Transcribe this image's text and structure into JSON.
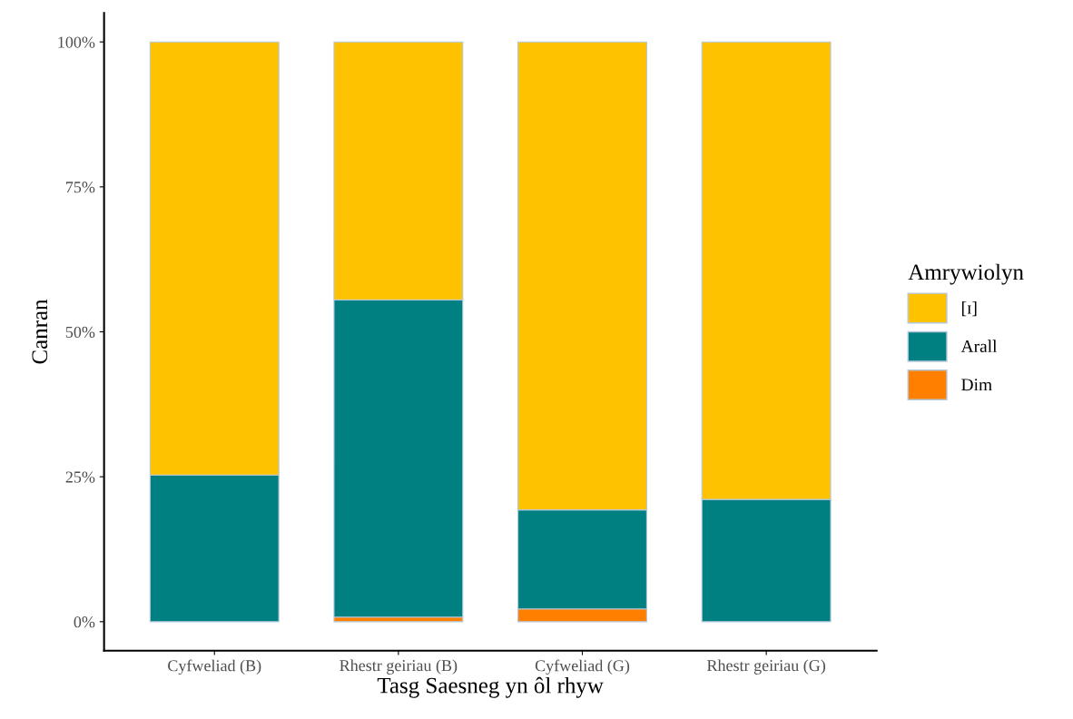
{
  "chart_data": {
    "type": "bar",
    "stacked": true,
    "xlabel": "Tasg Saesneg yn ôl rhyw",
    "ylabel": "Canran",
    "legend_title": "Amrywiolyn",
    "legend": "right",
    "categories": [
      "Cyfweliad (B)",
      "Rhestr geiriau (B)",
      "Cyfweliad (G)",
      "Rhestr geiriau (G)"
    ],
    "series": [
      {
        "name": "Dim",
        "color": "#ff7f00",
        "values": [
          0,
          0.8,
          2.2,
          0
        ]
      },
      {
        "name": "Arall",
        "color": "#008080",
        "values": [
          25.3,
          54.7,
          17.1,
          21.1
        ]
      },
      {
        "name": "[ɪ]",
        "color": "#ffc200",
        "values": [
          74.7,
          44.5,
          80.7,
          78.9
        ]
      }
    ],
    "ylim": [
      -5,
      105
    ],
    "yticks": [
      {
        "value": 0,
        "label": "0%"
      },
      {
        "value": 25,
        "label": "25%"
      },
      {
        "value": 50,
        "label": "50%"
      },
      {
        "value": 75,
        "label": "75%"
      },
      {
        "value": 100,
        "label": "100%"
      }
    ],
    "grid": false
  }
}
